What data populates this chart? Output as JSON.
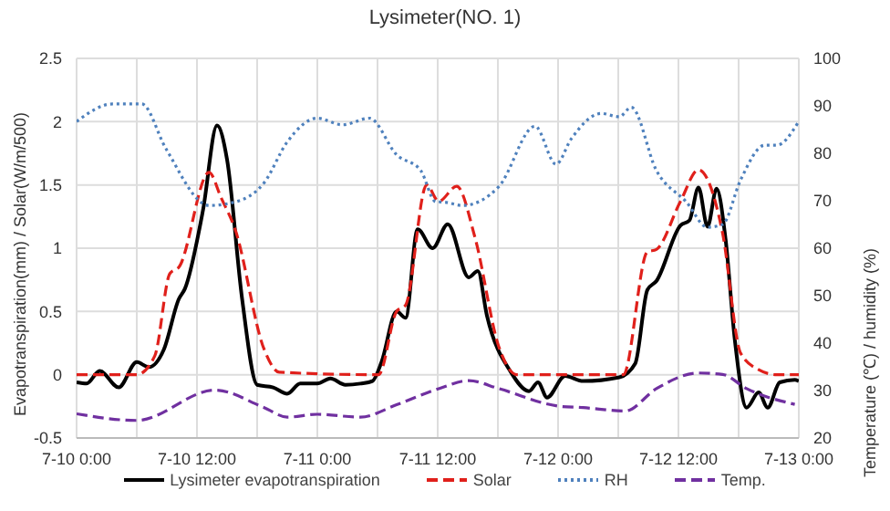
{
  "chart_data": {
    "type": "line",
    "title": "Lysimeter(NO.  1)",
    "ylabel": "Evapotranspiration(mm) / Solar(W/m/500)",
    "y2label": "Temperature (℃) / humidity  (%)",
    "xlim": [
      "--07-10T00:00",
      "--07-13T00:00"
    ],
    "xticks": [
      {
        "value": "--07-10T00:00",
        "label": "7-10 0:00"
      },
      {
        "value": "--07-10T06:00",
        "label": null
      },
      {
        "value": "--07-10T12:00",
        "label": "7-10 12:00"
      },
      {
        "value": "--07-10T18:00",
        "label": null
      },
      {
        "value": "--07-11T00:00",
        "label": "7-11 0:00"
      },
      {
        "value": "--07-11T06:00",
        "label": null
      },
      {
        "value": "--07-11T12:00",
        "label": "7-11 12:00"
      },
      {
        "value": "--07-11T18:00",
        "label": null
      },
      {
        "value": "--07-12T00:00",
        "label": "7-12 0:00"
      },
      {
        "value": "--07-12T06:00",
        "label": null
      },
      {
        "value": "--07-12T12:00",
        "label": "7-12 12:00"
      },
      {
        "value": "--07-12T18:00",
        "label": null
      },
      {
        "value": "--07-13T00:00",
        "label": "7-13 0:00"
      }
    ],
    "ylim": [
      -0.5,
      2.5
    ],
    "yticks": [
      -0.5,
      0,
      0.5,
      1,
      1.5,
      2,
      2.5
    ],
    "y2lim": [
      20,
      100
    ],
    "y2ticks": [
      20,
      30,
      40,
      50,
      60,
      70,
      80,
      90,
      100
    ],
    "grid": true,
    "legend": "bottom",
    "series": [
      {
        "name": "Lysimeter evapotranspiration",
        "color": "#000000",
        "line_style": "solid",
        "x": [
          "--07-10T00:00",
          "--07-10T01:00",
          "--07-10T02:18",
          "--07-10T04:12",
          "--07-10T06:00",
          "--07-10T07:12",
          "--07-10T08:42",
          "--07-10T10:12",
          "--07-10T10:48",
          "--07-10T12:36",
          "--07-10T14:00",
          "--07-10T15:00",
          "--07-10T16:30",
          "--07-10T18:00",
          "--07-10T19:36",
          "--07-10T21:00",
          "--07-10T22:18",
          "--07-11T00:00",
          "--07-11T01:18",
          "--07-11T02:48",
          "--07-11T04:18",
          "--07-11T05:30",
          "--07-11T06:24",
          "--07-11T07:54",
          "--07-11T08:48",
          "--07-11T10:00",
          "--07-11T11:30",
          "--07-11T13:00",
          "--07-11T15:06",
          "--07-11T16:00",
          "--07-11T16:54",
          "--07-11T19:18",
          "--07-11T21:06",
          "--07-11T22:00",
          "--07-11T22:54",
          "--07-12T00:42",
          "--07-12T02:30",
          "--07-12T06:06",
          "--07-12T07:42",
          "--07-12T08:54",
          "--07-12T09:48",
          "--07-12T12:12",
          "--07-12T13:06",
          "--07-12T14:00",
          "--07-12T14:54",
          "--07-12T15:48",
          "--07-12T16:42",
          "--07-12T17:36",
          "--07-12T18:48",
          "--07-12T20:00",
          "--07-12T20:54",
          "--07-12T22:06",
          "--07-12T23:36",
          "--07-13T00:00"
        ],
        "values": [
          -0.06,
          -0.07,
          0.03,
          -0.1,
          0.1,
          0.06,
          0.2,
          0.6,
          0.68,
          1.3,
          1.97,
          1.7,
          0.6,
          -0.08,
          -0.1,
          -0.15,
          -0.07,
          -0.07,
          -0.03,
          -0.08,
          -0.07,
          -0.05,
          0.1,
          0.5,
          0.45,
          1.15,
          1.0,
          1.19,
          0.77,
          0.82,
          0.47,
          0.02,
          -0.13,
          -0.06,
          -0.18,
          -0.01,
          -0.05,
          -0.02,
          0.09,
          0.67,
          0.74,
          1.18,
          1.22,
          1.48,
          1.17,
          1.47,
          1.07,
          0.29,
          -0.26,
          -0.14,
          -0.26,
          -0.06,
          -0.04,
          -0.05
        ]
      },
      {
        "name": "Solar",
        "color": "#e0201b",
        "line_style": "dashed",
        "x": [
          "--07-10T00:00",
          "--07-10T06:00",
          "--07-10T07:48",
          "--07-10T09:18",
          "--07-10T10:12",
          "--07-10T13:12",
          "--07-10T14:24",
          "--07-10T15:48",
          "--07-10T18:42",
          "--07-10T20:12",
          "--07-11T06:06",
          "--07-11T07:54",
          "--07-11T08:48",
          "--07-11T10:54",
          "--07-11T12:06",
          "--07-11T13:54",
          "--07-11T15:42",
          "--07-11T18:06",
          "--07-11T19:54",
          "--07-12T06:30",
          "--07-12T08:54",
          "--07-12T09:48",
          "--07-12T12:12",
          "--07-12T14:00",
          "--07-12T16:24",
          "--07-12T18:12",
          "--07-12T20:00",
          "--07-12T21:48",
          "--07-13T00:00"
        ],
        "values": [
          0,
          0,
          0.15,
          0.8,
          0.85,
          1.6,
          1.4,
          1.15,
          0.2,
          0.02,
          0,
          0.5,
          0.55,
          1.5,
          1.37,
          1.49,
          1.09,
          0.22,
          0,
          0,
          0.97,
          0.99,
          1.37,
          1.62,
          1.12,
          0.17,
          0.04,
          0,
          0
        ]
      },
      {
        "name": "RH",
        "color": "#4f81bd",
        "line_style": "dotted",
        "axis": "y2",
        "x": [
          "--07-10T00:00",
          "--07-10T03:36",
          "--07-10T06:30",
          "--07-10T08:54",
          "--07-10T13:12",
          "--07-10T15:54",
          "--07-10T18:42",
          "--07-10T21:00",
          "--07-11T00:00",
          "--07-11T02:30",
          "--07-11T05:12",
          "--07-11T07:54",
          "--07-11T10:18",
          "--07-11T11:48",
          "--07-11T12:42",
          "--07-11T14:30",
          "--07-11T18:06",
          "--07-11T21:42",
          "--07-11T23:48",
          "--07-12T01:18",
          "--07-12T04:18",
          "--07-12T06:06",
          "--07-12T07:18",
          "--07-12T09:48",
          "--07-12T12:48",
          "--07-12T14:54",
          "--07-12T16:24",
          "--07-12T18:12",
          "--07-12T20:36",
          "--07-12T21:48",
          "--07-12T23:54"
        ],
        "values": [
          86.7,
          90.4,
          90.4,
          81,
          69,
          69.8,
          73.8,
          82.4,
          87.4,
          86,
          87.4,
          79.7,
          76.4,
          69.8,
          69.7,
          69,
          73,
          85.7,
          77.7,
          83,
          88.4,
          87.7,
          89.7,
          76.4,
          69.7,
          64.4,
          65,
          74.4,
          81.7,
          81.7,
          86.4
        ]
      },
      {
        "name": "Temp.",
        "color": "#7030a0",
        "line_style": "dashed",
        "axis": "y2",
        "x": [
          "--07-10T00:00",
          "--07-10T06:00",
          "--07-10T13:48",
          "--07-10T18:42",
          "--07-10T21:00",
          "--07-11T00:00",
          "--07-11T04:18",
          "--07-11T07:54",
          "--07-11T12:06",
          "--07-11T15:06",
          "--07-11T18:06",
          "--07-12T00:06",
          "--07-12T02:30",
          "--07-12T06:42",
          "--07-12T09:48",
          "--07-12T14:00",
          "--07-12T16:24",
          "--07-12T18:48",
          "--07-12T23:36"
        ],
        "values": [
          25.1,
          23.7,
          30.1,
          26.4,
          24.4,
          25,
          24.4,
          27,
          30.4,
          32.1,
          30.4,
          26.7,
          26.4,
          25.7,
          30.4,
          33.7,
          33.4,
          30.4,
          27.1
        ]
      }
    ]
  }
}
